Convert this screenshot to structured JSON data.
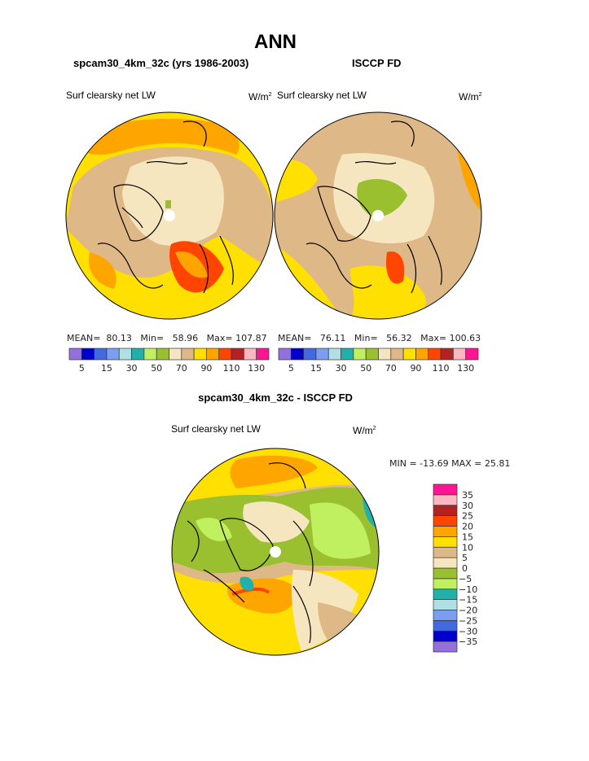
{
  "title": "ANN",
  "panels": [
    {
      "subtitle": "spcam30_4km_32c (yrs 1986-2003)",
      "variable": "Surf clearsky net LW",
      "units": "W/m",
      "units_sup": "2",
      "stats": {
        "mean_label": "MEAN=",
        "mean": "80.13",
        "min_label": "Min=",
        "min": "58.96",
        "max_label": "Max=",
        "max": "107.87"
      }
    },
    {
      "subtitle": "ISCCP FD",
      "variable": "Surf clearsky net LW",
      "units": "W/m",
      "units_sup": "2",
      "stats": {
        "mean_label": "MEAN=",
        "mean": "76.11",
        "min_label": "Min=",
        "min": "56.32",
        "max_label": "Max=",
        "max": "100.63"
      }
    }
  ],
  "diff": {
    "title": "spcam30_4km_32c - ISCCP FD",
    "variable": "Surf clearsky net LW",
    "units": "W/m",
    "units_sup": "2",
    "minmax": "MIN = -13.69  MAX =  25.81"
  },
  "chart_data": [
    {
      "type": "heatmap",
      "projection": "north-polar-stereographic",
      "title": "spcam30_4km_32c (yrs 1986-2003)",
      "levels": [
        5,
        10,
        15,
        20,
        30,
        40,
        50,
        60,
        70,
        80,
        90,
        100,
        110,
        120,
        130
      ],
      "tick_labels": [
        "5",
        "15",
        "30",
        "50",
        "70",
        "90",
        "110",
        "130"
      ],
      "colors": [
        "#9370db",
        "#0000cd",
        "#4169e1",
        "#7b9ef0",
        "#b0e0e6",
        "#20b2aa",
        "#c0f060",
        "#9ac030",
        "#f5e6c0",
        "#deb887",
        "#ffe000",
        "#ffa500",
        "#ff4500",
        "#b22222",
        "#ffb6c1",
        "#ff1493"
      ],
      "mean": 80.13,
      "min": 58.96,
      "max": 107.87
    },
    {
      "type": "heatmap",
      "projection": "north-polar-stereographic",
      "title": "ISCCP FD",
      "levels": [
        5,
        10,
        15,
        20,
        30,
        40,
        50,
        60,
        70,
        80,
        90,
        100,
        110,
        120,
        130
      ],
      "tick_labels": [
        "5",
        "15",
        "30",
        "50",
        "70",
        "90",
        "110",
        "130"
      ],
      "colors": [
        "#9370db",
        "#0000cd",
        "#4169e1",
        "#7b9ef0",
        "#b0e0e6",
        "#20b2aa",
        "#c0f060",
        "#9ac030",
        "#f5e6c0",
        "#deb887",
        "#ffe000",
        "#ffa500",
        "#ff4500",
        "#b22222",
        "#ffb6c1",
        "#ff1493"
      ],
      "mean": 76.11,
      "min": 56.32,
      "max": 100.63
    },
    {
      "type": "heatmap",
      "projection": "north-polar-stereographic",
      "title": "spcam30_4km_32c - ISCCP FD",
      "levels": [
        -35,
        -30,
        -25,
        -20,
        -15,
        -10,
        -5,
        0,
        5,
        10,
        15,
        20,
        25,
        30,
        35
      ],
      "tick_labels": [
        "-35",
        "-30",
        "-25",
        "-20",
        "-15",
        "-10",
        "-5",
        "0",
        "5",
        "10",
        "15",
        "20",
        "25",
        "30",
        "35"
      ],
      "colors": [
        "#9370db",
        "#0000cd",
        "#4169e1",
        "#7b9ef0",
        "#b0e0e6",
        "#20b2aa",
        "#c0f060",
        "#9ac030",
        "#f5e6c0",
        "#deb887",
        "#ffe000",
        "#ffa500",
        "#ff4500",
        "#b22222",
        "#ffb6c1",
        "#ff1493"
      ],
      "min": -13.69,
      "max": 25.81
    }
  ]
}
